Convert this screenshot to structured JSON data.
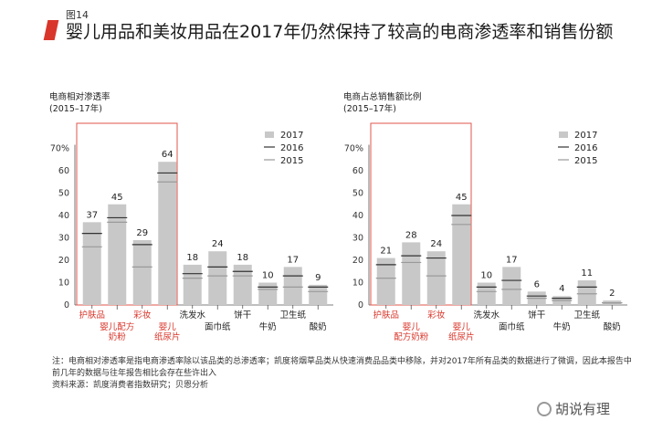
{
  "figure_label": "图14",
  "title": "婴儿用品和美妆用品在2017年仍然保持了较高的电商渗透率和销售份额",
  "accent_color": "#d9362b",
  "highlight_border_color": "#e0554b",
  "bar_color": "#c8c8c8",
  "line_2016_color": "#333333",
  "line_2015_color": "#9a9a9a",
  "legend": [
    "2017",
    "2016",
    "2015"
  ],
  "notes": {
    "note": "注：电商相对渗透率是指电商渗透率除以该品类的总渗透率；凯度将烟草品类从快速消费品品类中移除，并对2017年所有品类的数据进行了微调，因此本报告中前几年的数据与往年报告相比会存在些许出入",
    "source": "资料来源：凯度消费者指数研究；贝恩分析"
  },
  "watermark": "胡说有理",
  "chart_data": [
    {
      "type": "bar",
      "title": "电商相对渗透率",
      "subtitle": "(2015–17年)",
      "ylim": [
        0,
        70
      ],
      "yticks": [
        "0",
        "10",
        "20",
        "30",
        "40",
        "50",
        "60",
        "70%"
      ],
      "categories": [
        "护肤品",
        "婴儿配方奶粉",
        "彩妆",
        "婴儿纸尿片",
        "洗发水",
        "面巾纸",
        "饼干",
        "牛奶",
        "卫生纸",
        "酸奶"
      ],
      "category_lines": [
        [
          "护肤品"
        ],
        [
          "婴儿配方",
          "奶粉"
        ],
        [
          "彩妆"
        ],
        [
          "婴儿",
          "纸尿片"
        ],
        [
          "洗发水"
        ],
        [
          "面巾纸"
        ],
        [
          "饼干"
        ],
        [
          "牛奶"
        ],
        [
          "卫生纸"
        ],
        [
          "酸奶"
        ]
      ],
      "label_row": [
        0,
        1,
        0,
        1,
        0,
        1,
        0,
        1,
        0,
        1
      ],
      "highlighted": [
        true,
        true,
        true,
        true,
        false,
        false,
        false,
        false,
        false,
        false
      ],
      "series": [
        {
          "name": "2017",
          "values": [
            37,
            45,
            29,
            64,
            18,
            24,
            18,
            10,
            17,
            9
          ]
        },
        {
          "name": "2016",
          "values": [
            32,
            39,
            27,
            59,
            14,
            17,
            15,
            8,
            13,
            8
          ]
        },
        {
          "name": "2015",
          "values": [
            26,
            37,
            17,
            55,
            12,
            13,
            13,
            7,
            8,
            6
          ]
        }
      ]
    },
    {
      "type": "bar",
      "title": "电商占总销售额比例",
      "subtitle": "(2015–17年)",
      "ylim": [
        0,
        70
      ],
      "yticks": [
        "0",
        "10",
        "20",
        "30",
        "40",
        "50",
        "60",
        "70%"
      ],
      "categories": [
        "护肤品",
        "婴儿配方奶粉",
        "彩妆",
        "婴儿纸尿片",
        "洗发水",
        "面巾纸",
        "饼干",
        "牛奶",
        "卫生纸",
        "酸奶"
      ],
      "category_lines": [
        [
          "护肤品"
        ],
        [
          "婴儿",
          "配方奶粉"
        ],
        [
          "彩妆"
        ],
        [
          "婴儿",
          "纸尿片"
        ],
        [
          "洗发水"
        ],
        [
          "面巾纸"
        ],
        [
          "饼干"
        ],
        [
          "牛奶"
        ],
        [
          "卫生纸"
        ],
        [
          "酸奶"
        ]
      ],
      "label_row": [
        0,
        1,
        0,
        1,
        0,
        1,
        0,
        1,
        0,
        1
      ],
      "highlighted": [
        true,
        true,
        true,
        true,
        false,
        false,
        false,
        false,
        false,
        false
      ],
      "series": [
        {
          "name": "2017",
          "values": [
            21,
            28,
            24,
            45,
            10,
            17,
            6,
            4,
            11,
            2
          ]
        },
        {
          "name": "2016",
          "values": [
            18,
            22,
            21,
            40,
            8,
            11,
            4,
            3,
            8,
            1
          ]
        },
        {
          "name": "2015",
          "values": [
            12,
            19,
            13,
            36,
            6,
            7,
            3,
            2,
            5,
            1
          ]
        }
      ]
    }
  ]
}
